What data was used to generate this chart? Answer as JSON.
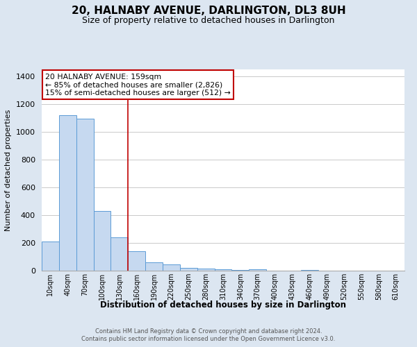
{
  "title": "20, HALNABY AVENUE, DARLINGTON, DL3 8UH",
  "subtitle": "Size of property relative to detached houses in Darlington",
  "xlabel": "Distribution of detached houses by size in Darlington",
  "ylabel": "Number of detached properties",
  "footnote1": "Contains HM Land Registry data © Crown copyright and database right 2024.",
  "footnote2": "Contains public sector information licensed under the Open Government Licence v3.0.",
  "bar_labels": [
    "10sqm",
    "40sqm",
    "70sqm",
    "100sqm",
    "130sqm",
    "160sqm",
    "190sqm",
    "220sqm",
    "250sqm",
    "280sqm",
    "310sqm",
    "340sqm",
    "370sqm",
    "400sqm",
    "430sqm",
    "460sqm",
    "490sqm",
    "520sqm",
    "550sqm",
    "580sqm",
    "610sqm"
  ],
  "bar_values": [
    210,
    1120,
    1095,
    430,
    240,
    140,
    60,
    45,
    20,
    15,
    10,
    5,
    8,
    0,
    0,
    5,
    0,
    0,
    0,
    0,
    0
  ],
  "bar_color": "#c6d9f0",
  "bar_edge_color": "#5b9bd5",
  "vline_x": 5.0,
  "vline_color": "#c00000",
  "annotation_title": "20 HALNABY AVENUE: 159sqm",
  "annotation_line1": "← 85% of detached houses are smaller (2,826)",
  "annotation_line2": "15% of semi-detached houses are larger (512) →",
  "annotation_box_color": "#c00000",
  "ylim": [
    0,
    1450
  ],
  "yticks": [
    0,
    200,
    400,
    600,
    800,
    1000,
    1200,
    1400
  ],
  "bg_color": "#dce6f1",
  "plot_bg_color": "#ffffff",
  "grid_color": "#c0c0c0",
  "title_fontsize": 11,
  "subtitle_fontsize": 9
}
